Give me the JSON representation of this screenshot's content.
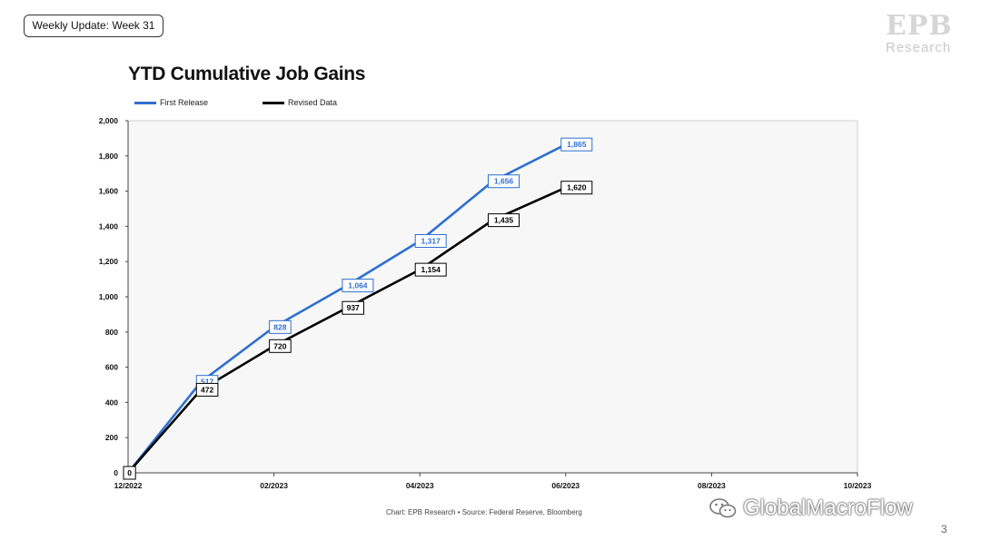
{
  "header": {
    "badge": "Weekly Update: Week 31",
    "logo_mark": "EPB",
    "logo_text": "Research",
    "page_number": "3"
  },
  "chart_data": {
    "type": "line",
    "title": "YTD Cumulative Job Gains",
    "xlabel": "",
    "ylabel": "",
    "ylim": [
      0,
      2000
    ],
    "yticks": [
      0,
      200,
      400,
      600,
      800,
      1000,
      1200,
      1400,
      1600,
      1800,
      2000
    ],
    "ytick_labels": [
      "0",
      "200",
      "400",
      "600",
      "800",
      "1,000",
      "1,200",
      "1,400",
      "1,600",
      "1,800",
      "2,000"
    ],
    "xlim": [
      "2022-12",
      "2023-10"
    ],
    "xticks": [
      "2022-12",
      "2023-02",
      "2023-04",
      "2023-06",
      "2023-08",
      "2023-10"
    ],
    "xtick_labels": [
      "12/2022",
      "02/2023",
      "04/2023",
      "06/2023",
      "08/2023",
      "10/2023"
    ],
    "x": [
      "2022-12",
      "2023-01",
      "2023-02",
      "2023-03",
      "2023-04",
      "2023-05",
      "2023-06"
    ],
    "series": [
      {
        "name": "First Release",
        "color": "#2e6fd0",
        "values": [
          0,
          517,
          828,
          1064,
          1317,
          1656,
          1865
        ],
        "labels": [
          "",
          "517",
          "828",
          "1,064",
          "1,317",
          "1,656",
          "1,865"
        ]
      },
      {
        "name": "Revised Data",
        "color": "#000000",
        "values": [
          0,
          472,
          720,
          937,
          1154,
          1435,
          1620
        ],
        "labels": [
          "0",
          "472",
          "720",
          "937",
          "1,154",
          "1,435",
          "1,620"
        ]
      }
    ],
    "grid": false,
    "legend_position": "top-left",
    "plot_background": "#f7f7f7"
  },
  "footer": {
    "source": "Chart: EPB Research  •  Source: Federal Reserve, Bloomberg",
    "watermark": "GlobalMacroFlow"
  }
}
